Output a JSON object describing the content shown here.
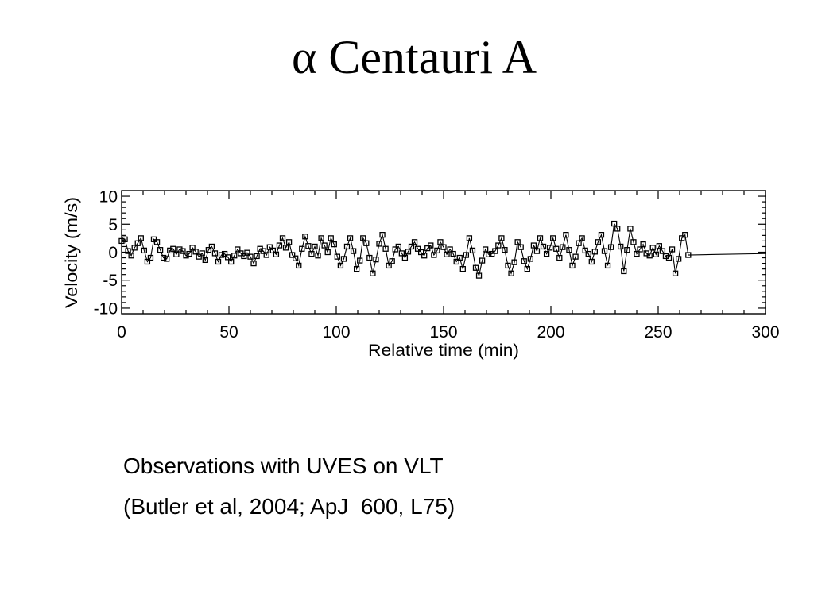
{
  "slide": {
    "title": "α Centauri A",
    "caption_lines": [
      "Observations with UVES on VLT",
      "(Butler et al, 2004; ApJ  600, L75)"
    ]
  },
  "chart_data": {
    "type": "line",
    "xlabel": "Relative time (min)",
    "ylabel": "Velocity (m/s)",
    "xlim": [
      0,
      300
    ],
    "ylim": [
      -11,
      11
    ],
    "xticks": [
      0,
      50,
      100,
      150,
      200,
      250,
      300
    ],
    "yticks": [
      10,
      5,
      0,
      -5,
      -10
    ],
    "x_minor_ticks_every": 10,
    "y_minor_ticks_every": 1,
    "grid": false,
    "legend": "none",
    "series": [
      {
        "marker": "open-square",
        "color": "#000000",
        "points": [
          [
            0,
            2.0
          ],
          [
            1.5,
            2.3
          ],
          [
            3,
            0.2
          ],
          [
            4.5,
            -0.6
          ],
          [
            6,
            0.8
          ],
          [
            7.5,
            1.6
          ],
          [
            9,
            2.5
          ],
          [
            10.5,
            0.3
          ],
          [
            12,
            -1.7
          ],
          [
            13.5,
            -1.0
          ],
          [
            15,
            2.3
          ],
          [
            16.5,
            1.8
          ],
          [
            18,
            0.4
          ],
          [
            19.5,
            -1.0
          ],
          [
            21,
            -1.2
          ],
          [
            22.5,
            0.3
          ],
          [
            24,
            0.6
          ],
          [
            25.5,
            -0.4
          ],
          [
            27,
            0.5
          ],
          [
            28.5,
            0.2
          ],
          [
            30,
            -0.6
          ],
          [
            31.5,
            -0.3
          ],
          [
            33,
            0.8
          ],
          [
            34.5,
            0.1
          ],
          [
            36,
            -0.8
          ],
          [
            37.5,
            -0.2
          ],
          [
            39,
            -1.4
          ],
          [
            40.5,
            0.4
          ],
          [
            42,
            1.0
          ],
          [
            43.5,
            -0.2
          ],
          [
            45,
            -1.7
          ],
          [
            46.5,
            -0.5
          ],
          [
            48,
            -0.3
          ],
          [
            49.5,
            -0.9
          ],
          [
            51,
            -1.7
          ],
          [
            52.5,
            -0.6
          ],
          [
            54,
            0.5
          ],
          [
            55.5,
            -0.2
          ],
          [
            57,
            -0.7
          ],
          [
            58.5,
            -0.1
          ],
          [
            60,
            -0.8
          ],
          [
            61.5,
            -2.0
          ],
          [
            63,
            -0.7
          ],
          [
            64.5,
            0.6
          ],
          [
            66,
            0.2
          ],
          [
            67.5,
            -0.5
          ],
          [
            69,
            0.9
          ],
          [
            70.5,
            0.3
          ],
          [
            72,
            -0.4
          ],
          [
            73.5,
            1.2
          ],
          [
            75,
            2.5
          ],
          [
            76.5,
            0.8
          ],
          [
            78,
            1.8
          ],
          [
            79.5,
            -0.5
          ],
          [
            81,
            -1.1
          ],
          [
            82.5,
            -2.4
          ],
          [
            84,
            0.6
          ],
          [
            85.5,
            2.8
          ],
          [
            87,
            1.1
          ],
          [
            88.5,
            -0.3
          ],
          [
            90,
            1.0
          ],
          [
            91.5,
            -0.6
          ],
          [
            93,
            2.5
          ],
          [
            94.5,
            1.2
          ],
          [
            96,
            0.0
          ],
          [
            97.5,
            2.5
          ],
          [
            99,
            1.4
          ],
          [
            100.5,
            -0.8
          ],
          [
            102,
            -2.4
          ],
          [
            103.5,
            -1.2
          ],
          [
            105,
            1.0
          ],
          [
            106.5,
            2.5
          ],
          [
            108,
            0.2
          ],
          [
            109.5,
            -3.0
          ],
          [
            111,
            -1.5
          ],
          [
            112.5,
            2.5
          ],
          [
            114,
            1.6
          ],
          [
            115.5,
            -1.0
          ],
          [
            117,
            -3.8
          ],
          [
            118.5,
            -1.3
          ],
          [
            120,
            1.5
          ],
          [
            121.5,
            3.1
          ],
          [
            123,
            0.6
          ],
          [
            124.5,
            -2.4
          ],
          [
            126,
            -1.6
          ],
          [
            127.5,
            0.5
          ],
          [
            129,
            1.0
          ],
          [
            130.5,
            -0.2
          ],
          [
            132,
            -1.0
          ],
          [
            133.5,
            0.1
          ],
          [
            135,
            1.0
          ],
          [
            136.5,
            1.8
          ],
          [
            138,
            0.6
          ],
          [
            139.5,
            0.0
          ],
          [
            141,
            -0.6
          ],
          [
            142.5,
            0.7
          ],
          [
            144,
            1.2
          ],
          [
            145.5,
            -0.5
          ],
          [
            147,
            0.3
          ],
          [
            148.5,
            1.8
          ],
          [
            150,
            0.9
          ],
          [
            151.5,
            -0.4
          ],
          [
            153,
            0.5
          ],
          [
            154.5,
            -0.3
          ],
          [
            156,
            -1.7
          ],
          [
            157.5,
            -1.0
          ],
          [
            159,
            -3.0
          ],
          [
            160.5,
            -0.5
          ],
          [
            162,
            2.5
          ],
          [
            163.5,
            0.3
          ],
          [
            165,
            -2.8
          ],
          [
            166.5,
            -4.2
          ],
          [
            168,
            -1.5
          ],
          [
            169.5,
            0.5
          ],
          [
            171,
            -0.4
          ],
          [
            172.5,
            -0.3
          ],
          [
            174,
            0.2
          ],
          [
            175.5,
            1.2
          ],
          [
            177,
            2.5
          ],
          [
            178.5,
            0.4
          ],
          [
            180,
            -2.4
          ],
          [
            181.5,
            -3.8
          ],
          [
            183,
            -1.8
          ],
          [
            184.5,
            1.8
          ],
          [
            186,
            0.9
          ],
          [
            187.5,
            -1.6
          ],
          [
            189,
            -3.0
          ],
          [
            190.5,
            -1.2
          ],
          [
            192,
            1.2
          ],
          [
            193.5,
            0.2
          ],
          [
            195,
            2.5
          ],
          [
            196.5,
            1.0
          ],
          [
            198,
            -0.3
          ],
          [
            199.5,
            0.8
          ],
          [
            201,
            2.5
          ],
          [
            202.5,
            0.6
          ],
          [
            204,
            -1.0
          ],
          [
            205.5,
            0.9
          ],
          [
            207,
            3.1
          ],
          [
            208.5,
            0.4
          ],
          [
            210,
            -2.4
          ],
          [
            211.5,
            -0.8
          ],
          [
            213,
            1.6
          ],
          [
            214.5,
            2.5
          ],
          [
            216,
            0.3
          ],
          [
            217.5,
            -0.3
          ],
          [
            219,
            -1.7
          ],
          [
            220.5,
            0.1
          ],
          [
            222,
            1.8
          ],
          [
            223.5,
            3.1
          ],
          [
            225,
            0.2
          ],
          [
            226.5,
            -2.4
          ],
          [
            228,
            0.9
          ],
          [
            229.5,
            5.1
          ],
          [
            231,
            4.2
          ],
          [
            232.5,
            1.0
          ],
          [
            234,
            -3.4
          ],
          [
            235.5,
            0.4
          ],
          [
            237,
            4.2
          ],
          [
            238.5,
            1.8
          ],
          [
            240,
            -0.3
          ],
          [
            241.5,
            0.5
          ],
          [
            243,
            1.4
          ],
          [
            244.5,
            -0.2
          ],
          [
            246,
            -0.6
          ],
          [
            247.5,
            0.8
          ],
          [
            249,
            -0.4
          ],
          [
            250.5,
            1.1
          ],
          [
            252,
            0.2
          ],
          [
            253.5,
            -0.7
          ],
          [
            255,
            -1.0
          ],
          [
            256.5,
            0.5
          ],
          [
            258,
            -3.8
          ],
          [
            259.5,
            -1.2
          ],
          [
            261,
            2.5
          ],
          [
            262.5,
            3.1
          ],
          [
            264,
            -0.5
          ]
        ]
      },
      {
        "marker": "none",
        "color": "#000000",
        "points": [
          [
            264,
            -0.5
          ],
          [
            277,
            -0.4
          ],
          [
            300,
            -0.25
          ]
        ]
      }
    ]
  }
}
